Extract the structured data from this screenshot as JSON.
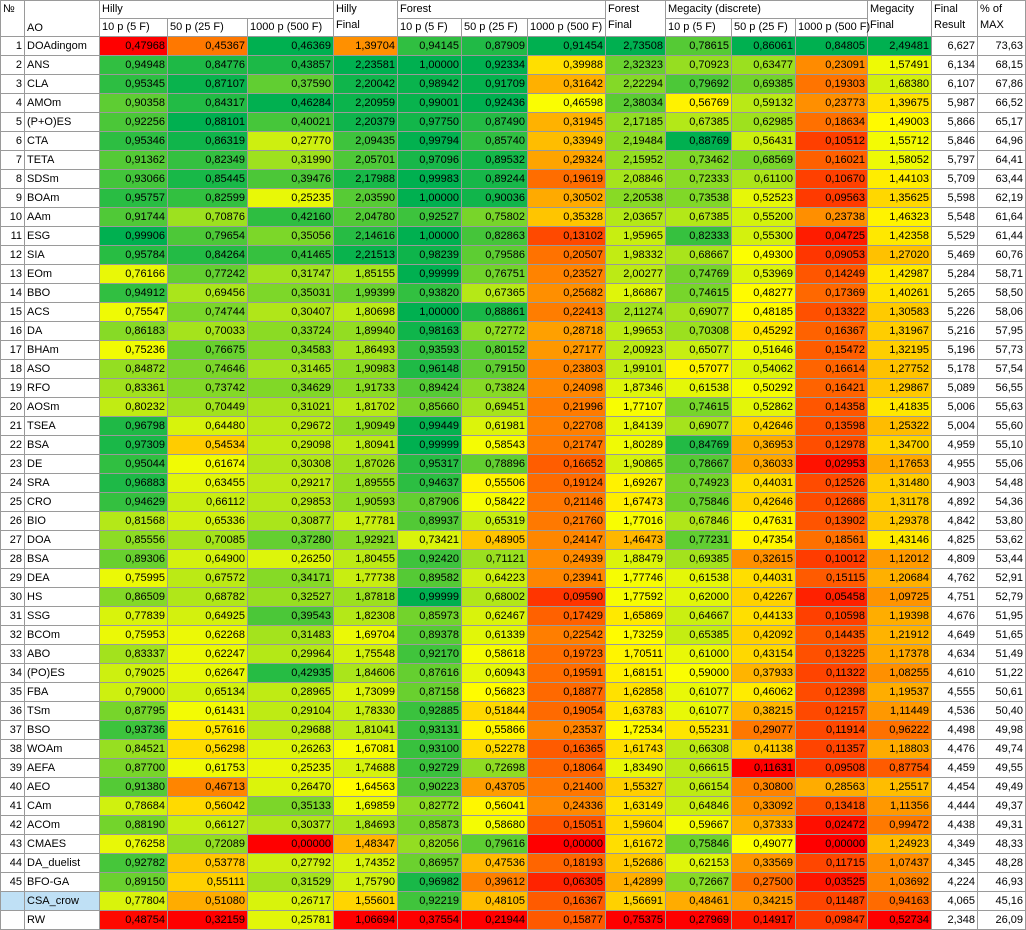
{
  "headers": {
    "num": "№",
    "ao": "AO",
    "hilly": "Hilly",
    "forest": "Forest",
    "megacity": "Megacity (discrete)",
    "t10": "10 p (5 F)",
    "t50": "50 p (25 F)",
    "t1000": "1000 p (500 F)",
    "hilly_final_1": "Hilly",
    "hilly_final_2": "Final",
    "forest_final_1": "Forest",
    "forest_final_2": "Final",
    "mega_final_1": "Megacity",
    "mega_final_2": "Final",
    "final_result_1": "Final",
    "final_result_2": "Result",
    "pct_1": "% of",
    "pct_2": "MAX"
  },
  "rows": [
    [
      "1",
      "DOAdingom",
      "0,47968",
      "0,45367",
      "0,46369",
      "1,39704",
      "0,94145",
      "0,87909",
      "0,91454",
      "2,73508",
      "0,78615",
      "0,86061",
      "0,84805",
      "2,49481",
      "6,627",
      "73,63"
    ],
    [
      "2",
      "ANS",
      "0,94948",
      "0,84776",
      "0,43857",
      "2,23581",
      "1,00000",
      "0,92334",
      "0,39988",
      "2,32323",
      "0,70923",
      "0,63477",
      "0,23091",
      "1,57491",
      "6,134",
      "68,15"
    ],
    [
      "3",
      "CLA",
      "0,95345",
      "0,87107",
      "0,37590",
      "2,20042",
      "0,98942",
      "0,91709",
      "0,31642",
      "2,22294",
      "0,79692",
      "0,69385",
      "0,19303",
      "1,68380",
      "6,107",
      "67,86"
    ],
    [
      "4",
      "AMOm",
      "0,90358",
      "0,84317",
      "0,46284",
      "2,20959",
      "0,99001",
      "0,92436",
      "0,46598",
      "2,38034",
      "0,56769",
      "0,59132",
      "0,23773",
      "1,39675",
      "5,987",
      "66,52"
    ],
    [
      "5",
      "(P+O)ES",
      "0,92256",
      "0,88101",
      "0,40021",
      "2,20379",
      "0,97750",
      "0,87490",
      "0,31945",
      "2,17185",
      "0,67385",
      "0,62985",
      "0,18634",
      "1,49003",
      "5,866",
      "65,17"
    ],
    [
      "6",
      "CTA",
      "0,95346",
      "0,86319",
      "0,27770",
      "2,09435",
      "0,99794",
      "0,85740",
      "0,33949",
      "2,19484",
      "0,88769",
      "0,56431",
      "0,10512",
      "1,55712",
      "5,846",
      "64,96"
    ],
    [
      "7",
      "TETA",
      "0,91362",
      "0,82349",
      "0,31990",
      "2,05701",
      "0,97096",
      "0,89532",
      "0,29324",
      "2,15952",
      "0,73462",
      "0,68569",
      "0,16021",
      "1,58052",
      "5,797",
      "64,41"
    ],
    [
      "8",
      "SDSm",
      "0,93066",
      "0,85445",
      "0,39476",
      "2,17988",
      "0,99983",
      "0,89244",
      "0,19619",
      "2,08846",
      "0,72333",
      "0,61100",
      "0,10670",
      "1,44103",
      "5,709",
      "63,44"
    ],
    [
      "9",
      "BOAm",
      "0,95757",
      "0,82599",
      "0,25235",
      "2,03590",
      "1,00000",
      "0,90036",
      "0,30502",
      "2,20538",
      "0,73538",
      "0,52523",
      "0,09563",
      "1,35625",
      "5,598",
      "62,19"
    ],
    [
      "10",
      "AAm",
      "0,91744",
      "0,70876",
      "0,42160",
      "2,04780",
      "0,92527",
      "0,75802",
      "0,35328",
      "2,03657",
      "0,67385",
      "0,55200",
      "0,23738",
      "1,46323",
      "5,548",
      "61,64"
    ],
    [
      "11",
      "ESG",
      "0,99906",
      "0,79654",
      "0,35056",
      "2,14616",
      "1,00000",
      "0,82863",
      "0,13102",
      "1,95965",
      "0,82333",
      "0,55300",
      "0,04725",
      "1,42358",
      "5,529",
      "61,44"
    ],
    [
      "12",
      "SIA",
      "0,95784",
      "0,84264",
      "0,41465",
      "2,21513",
      "0,98239",
      "0,79586",
      "0,20507",
      "1,98332",
      "0,68667",
      "0,49300",
      "0,09053",
      "1,27020",
      "5,469",
      "60,76"
    ],
    [
      "13",
      "EOm",
      "0,76166",
      "0,77242",
      "0,31747",
      "1,85155",
      "0,99999",
      "0,76751",
      "0,23527",
      "2,00277",
      "0,74769",
      "0,53969",
      "0,14249",
      "1,42987",
      "5,284",
      "58,71"
    ],
    [
      "14",
      "BBO",
      "0,94912",
      "0,69456",
      "0,35031",
      "1,99399",
      "0,93820",
      "0,67365",
      "0,25682",
      "1,86867",
      "0,74615",
      "0,48277",
      "0,17369",
      "1,40261",
      "5,265",
      "58,50"
    ],
    [
      "15",
      "ACS",
      "0,75547",
      "0,74744",
      "0,30407",
      "1,80698",
      "1,00000",
      "0,88861",
      "0,22413",
      "2,11274",
      "0,69077",
      "0,48185",
      "0,13322",
      "1,30583",
      "5,226",
      "58,06"
    ],
    [
      "16",
      "DA",
      "0,86183",
      "0,70033",
      "0,33724",
      "1,89940",
      "0,98163",
      "0,72772",
      "0,28718",
      "1,99653",
      "0,70308",
      "0,45292",
      "0,16367",
      "1,31967",
      "5,216",
      "57,95"
    ],
    [
      "17",
      "BHAm",
      "0,75236",
      "0,76675",
      "0,34583",
      "1,86493",
      "0,93593",
      "0,80152",
      "0,27177",
      "2,00923",
      "0,65077",
      "0,51646",
      "0,15472",
      "1,32195",
      "5,196",
      "57,73"
    ],
    [
      "18",
      "ASO",
      "0,84872",
      "0,74646",
      "0,31465",
      "1,90983",
      "0,96148",
      "0,79150",
      "0,23803",
      "1,99101",
      "0,57077",
      "0,54062",
      "0,16614",
      "1,27752",
      "5,178",
      "57,54"
    ],
    [
      "19",
      "RFO",
      "0,83361",
      "0,73742",
      "0,34629",
      "1,91733",
      "0,89424",
      "0,73824",
      "0,24098",
      "1,87346",
      "0,61538",
      "0,50292",
      "0,16421",
      "1,29867",
      "5,089",
      "56,55"
    ],
    [
      "20",
      "AOSm",
      "0,80232",
      "0,70449",
      "0,31021",
      "1,81702",
      "0,85660",
      "0,69451",
      "0,21996",
      "1,77107",
      "0,74615",
      "0,52862",
      "0,14358",
      "1,41835",
      "5,006",
      "55,63"
    ],
    [
      "21",
      "TSEA",
      "0,96798",
      "0,64480",
      "0,29672",
      "1,90949",
      "0,99449",
      "0,61981",
      "0,22708",
      "1,84139",
      "0,69077",
      "0,42646",
      "0,13598",
      "1,25322",
      "5,004",
      "55,60"
    ],
    [
      "22",
      "BSA",
      "0,97309",
      "0,54534",
      "0,29098",
      "1,80941",
      "0,99999",
      "0,58543",
      "0,21747",
      "1,80289",
      "0,84769",
      "0,36953",
      "0,12978",
      "1,34700",
      "4,959",
      "55,10"
    ],
    [
      "23",
      "DE",
      "0,95044",
      "0,61674",
      "0,30308",
      "1,87026",
      "0,95317",
      "0,78896",
      "0,16652",
      "1,90865",
      "0,78667",
      "0,36033",
      "0,02953",
      "1,17653",
      "4,955",
      "55,06"
    ],
    [
      "24",
      "SRA",
      "0,96883",
      "0,63455",
      "0,29217",
      "1,89555",
      "0,94637",
      "0,55506",
      "0,19124",
      "1,69267",
      "0,74923",
      "0,44031",
      "0,12526",
      "1,31480",
      "4,903",
      "54,48"
    ],
    [
      "25",
      "CRO",
      "0,94629",
      "0,66112",
      "0,29853",
      "1,90593",
      "0,87906",
      "0,58422",
      "0,21146",
      "1,67473",
      "0,75846",
      "0,42646",
      "0,12686",
      "1,31178",
      "4,892",
      "54,36"
    ],
    [
      "26",
      "BIO",
      "0,81568",
      "0,65336",
      "0,30877",
      "1,77781",
      "0,89937",
      "0,65319",
      "0,21760",
      "1,77016",
      "0,67846",
      "0,47631",
      "0,13902",
      "1,29378",
      "4,842",
      "53,80"
    ],
    [
      "27",
      "DOA",
      "0,85556",
      "0,70085",
      "0,37280",
      "1,92921",
      "0,73421",
      "0,48905",
      "0,24147",
      "1,46473",
      "0,77231",
      "0,47354",
      "0,18561",
      "1,43146",
      "4,825",
      "53,62"
    ],
    [
      "28",
      "BSA",
      "0,89306",
      "0,64900",
      "0,26250",
      "1,80455",
      "0,92420",
      "0,71121",
      "0,24939",
      "1,88479",
      "0,69385",
      "0,32615",
      "0,10012",
      "1,12012",
      "4,809",
      "53,44"
    ],
    [
      "29",
      "DEA",
      "0,75995",
      "0,67572",
      "0,34171",
      "1,77738",
      "0,89582",
      "0,64223",
      "0,23941",
      "1,77746",
      "0,61538",
      "0,44031",
      "0,15115",
      "1,20684",
      "4,762",
      "52,91"
    ],
    [
      "30",
      "HS",
      "0,86509",
      "0,68782",
      "0,32527",
      "1,87818",
      "0,99999",
      "0,68002",
      "0,09590",
      "1,77592",
      "0,62000",
      "0,42267",
      "0,05458",
      "1,09725",
      "4,751",
      "52,79"
    ],
    [
      "31",
      "SSG",
      "0,77839",
      "0,64925",
      "0,39543",
      "1,82308",
      "0,85973",
      "0,62467",
      "0,17429",
      "1,65869",
      "0,64667",
      "0,44133",
      "0,10598",
      "1,19398",
      "4,676",
      "51,95"
    ],
    [
      "32",
      "BCOm",
      "0,75953",
      "0,62268",
      "0,31483",
      "1,69704",
      "0,89378",
      "0,61339",
      "0,22542",
      "1,73259",
      "0,65385",
      "0,42092",
      "0,14435",
      "1,21912",
      "4,649",
      "51,65"
    ],
    [
      "33",
      "ABO",
      "0,83337",
      "0,62247",
      "0,29964",
      "1,75548",
      "0,92170",
      "0,58618",
      "0,19723",
      "1,70511",
      "0,61000",
      "0,43154",
      "0,13225",
      "1,17378",
      "4,634",
      "51,49"
    ],
    [
      "34",
      "(PO)ES",
      "0,79025",
      "0,62647",
      "0,42935",
      "1,84606",
      "0,87616",
      "0,60943",
      "0,19591",
      "1,68151",
      "0,59000",
      "0,37933",
      "0,11322",
      "1,08255",
      "4,610",
      "51,22"
    ],
    [
      "35",
      "FBA",
      "0,79000",
      "0,65134",
      "0,28965",
      "1,73099",
      "0,87158",
      "0,56823",
      "0,18877",
      "1,62858",
      "0,61077",
      "0,46062",
      "0,12398",
      "1,19537",
      "4,555",
      "50,61"
    ],
    [
      "36",
      "TSm",
      "0,87795",
      "0,61431",
      "0,29104",
      "1,78330",
      "0,92885",
      "0,51844",
      "0,19054",
      "1,63783",
      "0,61077",
      "0,38215",
      "0,12157",
      "1,11449",
      "4,536",
      "50,40"
    ],
    [
      "37",
      "BSO",
      "0,93736",
      "0,57616",
      "0,29688",
      "1,81041",
      "0,93131",
      "0,55866",
      "0,23537",
      "1,72534",
      "0,55231",
      "0,29077",
      "0,11914",
      "0,96222",
      "4,498",
      "49,98"
    ],
    [
      "38",
      "WOAm",
      "0,84521",
      "0,56298",
      "0,26263",
      "1,67081",
      "0,93100",
      "0,52278",
      "0,16365",
      "1,61743",
      "0,66308",
      "0,41138",
      "0,11357",
      "1,18803",
      "4,476",
      "49,74"
    ],
    [
      "39",
      "AEFA",
      "0,87700",
      "0,61753",
      "0,25235",
      "1,74688",
      "0,92729",
      "0,72698",
      "0,18064",
      "1,83490",
      "0,66615",
      "0,11631",
      "0,09508",
      "0,87754",
      "4,459",
      "49,55"
    ],
    [
      "40",
      "AEO",
      "0,91380",
      "0,46713",
      "0,26470",
      "1,64563",
      "0,90223",
      "0,43705",
      "0,21400",
      "1,55327",
      "0,66154",
      "0,30800",
      "0,28563",
      "1,25517",
      "4,454",
      "49,49"
    ],
    [
      "41",
      "CAm",
      "0,78684",
      "0,56042",
      "0,35133",
      "1,69859",
      "0,82772",
      "0,56041",
      "0,24336",
      "1,63149",
      "0,64846",
      "0,33092",
      "0,13418",
      "1,11356",
      "4,444",
      "49,37"
    ],
    [
      "42",
      "ACOm",
      "0,88190",
      "0,66127",
      "0,30377",
      "1,84693",
      "0,85873",
      "0,58680",
      "0,15051",
      "1,59604",
      "0,59667",
      "0,37333",
      "0,02472",
      "0,99472",
      "4,438",
      "49,31"
    ],
    [
      "43",
      "CMAES",
      "0,76258",
      "0,72089",
      "0,00000",
      "1,48347",
      "0,82056",
      "0,79616",
      "0,00000",
      "1,61672",
      "0,75846",
      "0,49077",
      "0,00000",
      "1,24923",
      "4,349",
      "48,33"
    ],
    [
      "44",
      "DA_duelist",
      "0,92782",
      "0,53778",
      "0,27792",
      "1,74352",
      "0,86957",
      "0,47536",
      "0,18193",
      "1,52686",
      "0,62153",
      "0,33569",
      "0,11715",
      "1,07437",
      "4,345",
      "48,28"
    ],
    [
      "45",
      "BFO-GA",
      "0,89150",
      "0,55111",
      "0,31529",
      "1,75790",
      "0,96982",
      "0,39612",
      "0,06305",
      "1,42899",
      "0,72667",
      "0,27500",
      "0,03525",
      "1,03692",
      "4,224",
      "46,93"
    ],
    [
      "",
      "CSA_crow",
      "0,77804",
      "0,51080",
      "0,26717",
      "1,55601",
      "0,92219",
      "0,48105",
      "0,16367",
      "1,56691",
      "0,48461",
      "0,34215",
      "0,11487",
      "0,94163",
      "4,065",
      "45,16"
    ],
    [
      "",
      "RW",
      "0,48754",
      "0,32159",
      "0,25781",
      "1,06694",
      "0,37554",
      "0,21944",
      "0,15877",
      "0,75375",
      "0,27969",
      "0,14917",
      "0,09847",
      "0,52734",
      "2,348",
      "26,09"
    ]
  ]
}
